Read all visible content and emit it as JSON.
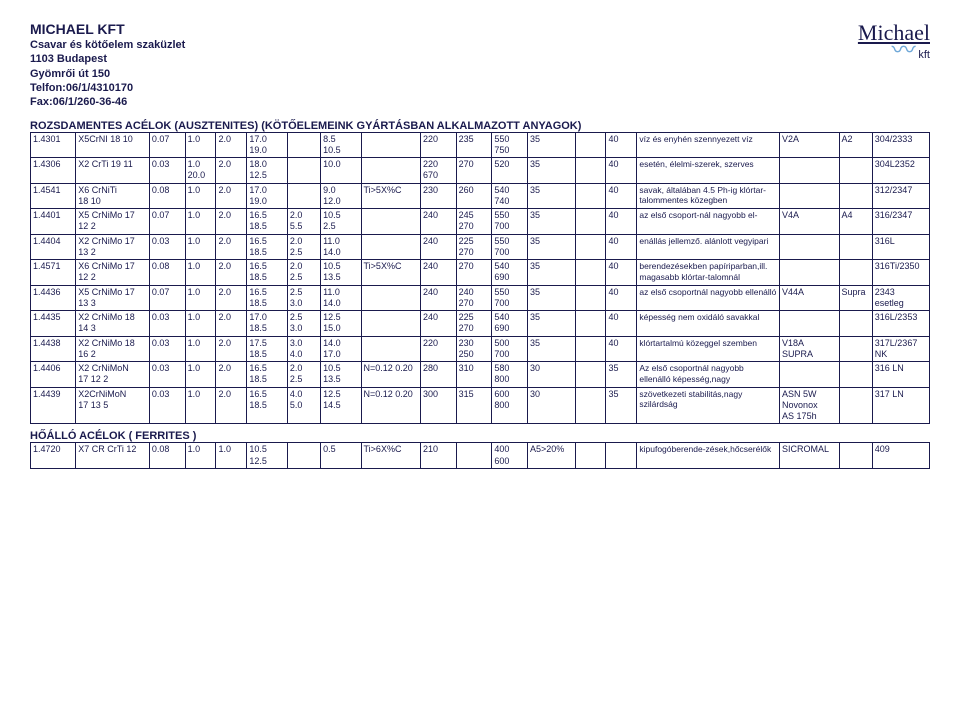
{
  "company": {
    "name": "MICHAEL KFT",
    "subtitle": "Csavar és kötőelem szaküzlet",
    "addr1": "1103 Budapest",
    "addr2": "Gyömrői út 150",
    "tel": "Telfon:06/1/4310170",
    "fax": "Fax:06/1/260-36-46"
  },
  "logo": {
    "script": "Michael",
    "mark": "kft"
  },
  "section1_title": "ROZSDAMENTES ACÉLOK (AUSZTENITES) (KÖTŐELEMEINK GYÁRTÁSBAN ALKALMAZOTT ANYAGOK)",
  "section2_title": "HŐÁLLÓ ACÉLOK ( FERRITES )",
  "rows": [
    {
      "c0": "1.4301",
      "c1": "X5CrNI 18 10",
      "c2": "0.07",
      "c3": "1.0",
      "c4": "2.0",
      "c5": "17.0\n19.0",
      "c6": "",
      "c7": "8.5\n10.5",
      "c8": "",
      "c9": "220",
      "c10": "235",
      "c11": "550\n750",
      "c12": "35",
      "c13": "",
      "c14": "40",
      "n": "víz és enyhén szennyezett víz",
      "c16": "V2A",
      "c17": "A2",
      "c18": "304/2333"
    },
    {
      "c0": "1.4306",
      "c1": "X2 CrTi 19 11",
      "c2": "0.03",
      "c3": "1.0\n20.0",
      "c4": "2.0",
      "c5": "18.0\n12.5",
      "c6": "",
      "c7": "10.0",
      "c8": "",
      "c9": "220\n670",
      "c10": "270",
      "c11": "520",
      "c12": "35",
      "c13": "",
      "c14": "40",
      "n": "esetén, élelmi-szerek, szerves",
      "c16": "",
      "c17": "",
      "c18": "304L2352"
    },
    {
      "c0": "1.4541",
      "c1": "X6 CrNiTi\n18 10",
      "c2": "0.08",
      "c3": "1.0",
      "c4": "2.0",
      "c5": "17.0\n19.0",
      "c6": "",
      "c7": "9.0\n12.0",
      "c8": "Ti>5X%C",
      "c9": "230",
      "c10": "260",
      "c11": "540\n740",
      "c12": "35",
      "c13": "",
      "c14": "40",
      "n": "savak, általában 4.5 Ph-ig klórtar-talommentes közegben",
      "c16": "",
      "c17": "",
      "c18": "312/2347"
    },
    {
      "c0": "1.4401",
      "c1": "X5 CrNiMo 17\n12 2",
      "c2": "0.07",
      "c3": "1.0",
      "c4": "2.0",
      "c5": "16.5\n18.5",
      "c6": "2.0\n5.5",
      "c7": "10.5\n2.5",
      "c8": "",
      "c9": "240",
      "c10": "245\n270",
      "c11": "550\n700",
      "c12": "35",
      "c13": "",
      "c14": "40",
      "n": "az első csoport-nál nagyobb el-",
      "c16": "V4A",
      "c17": "A4",
      "c18": "316/2347"
    },
    {
      "c0": "1.4404",
      "c1": "X2 CrNiMo 17\n13 2",
      "c2": "0.03",
      "c3": "1.0",
      "c4": "2.0",
      "c5": "16.5\n18.5",
      "c6": "2.0\n2.5",
      "c7": "11.0\n14.0",
      "c8": "",
      "c9": "240",
      "c10": "225\n270",
      "c11": "550\n700",
      "c12": "35",
      "c13": "",
      "c14": "40",
      "n": "enállás jellemző. alánlott vegyipari",
      "c16": "",
      "c17": "",
      "c18": "316L"
    },
    {
      "c0": "1.4571",
      "c1": "X6 CrNiMo 17\n12 2",
      "c2": "0.08",
      "c3": "1.0",
      "c4": "2.0",
      "c5": "16.5\n18.5",
      "c6": "2.0\n2.5",
      "c7": "10.5\n13.5",
      "c8": "Ti>5X%C",
      "c9": "240",
      "c10": "270",
      "c11": "540\n690",
      "c12": "35",
      "c13": "",
      "c14": "40",
      "n": "berendezésekben papíriparban,ill. magasabb klórtar-talomnál",
      "c16": "",
      "c17": "",
      "c18": "316Ti/2350"
    },
    {
      "c0": "1.4436",
      "c1": "X5 CrNiMo 17\n13 3",
      "c2": "0.07",
      "c3": "1.0",
      "c4": "2.0",
      "c5": "16.5\n18.5",
      "c6": "2.5\n3.0",
      "c7": "11.0\n14.0",
      "c8": "",
      "c9": "240",
      "c10": "240\n270",
      "c11": "550\n700",
      "c12": "35",
      "c13": "",
      "c14": "40",
      "n": "az első csoportnál nagyobb ellenálló",
      "c16": "V44A",
      "c17": "Supra",
      "c18": "2343\nesetleg"
    },
    {
      "c0": "1.4435",
      "c1": "X2 CrNiMo 18\n14 3",
      "c2": "0.03",
      "c3": "1.0",
      "c4": "2.0",
      "c5": "17.0\n18.5",
      "c6": "2.5\n3.0",
      "c7": "12.5\n15.0",
      "c8": "",
      "c9": "240",
      "c10": "225\n270",
      "c11": "540\n690",
      "c12": "35",
      "c13": "",
      "c14": "40",
      "n": "képesség nem oxidáló savakkal",
      "c16": "",
      "c17": "",
      "c18": "316L/2353"
    },
    {
      "c0": "1.4438",
      "c1": "X2 CrNiMo 18\n16 2",
      "c2": "0.03",
      "c3": "1.0",
      "c4": "2.0",
      "c5": "17.5\n18.5",
      "c6": "3.0\n4.0",
      "c7": "14.0\n17.0",
      "c8": "",
      "c9": "220",
      "c10": "230\n250",
      "c11": "500\n700",
      "c12": "35",
      "c13": "",
      "c14": "40",
      "n": "klórtartalmú közeggel szemben",
      "c16": "V18A\nSUPRA",
      "c17": "",
      "c18": "317L/2367\nNK"
    },
    {
      "c0": "1.4406",
      "c1": "X2 CrNiMoN\n17 12 2",
      "c2": "0.03",
      "c3": "1.0",
      "c4": "2.0",
      "c5": "16.5\n18.5",
      "c6": "2.0\n2.5",
      "c7": "10.5\n13.5",
      "c8": "N=0.12 0.20",
      "c9": "280",
      "c10": "310",
      "c11": "580\n800",
      "c12": "30",
      "c13": "",
      "c14": "35",
      "n": "Az első csoportnál nagyobb ellenálló képesség,nagy",
      "c16": "",
      "c17": "",
      "c18": "316 LN"
    },
    {
      "c0": "1.4439",
      "c1": "X2CrNiMoN\n17 13 5",
      "c2": "0.03",
      "c3": "1.0",
      "c4": "2.0",
      "c5": "16.5\n18.5",
      "c6": "4.0\n5.0",
      "c7": "12.5\n14.5",
      "c8": "N=0.12 0.20",
      "c9": "300",
      "c10": "315",
      "c11": "600\n800",
      "c12": "30",
      "c13": "",
      "c14": "35",
      "n": "szövetkezeti stabilitás,nagy szilárdság",
      "c16": "ASN 5W\nNovonox\nAS 175h",
      "c17": "",
      "c18": "317 LN"
    }
  ],
  "rows2": [
    {
      "c0": "1.4720",
      "c1": "X7 CR CrTi 12",
      "c2": "0.08",
      "c3": "1.0",
      "c4": "1.0",
      "c5": "10.5\n12.5",
      "c6": "",
      "c7": "0.5",
      "c8": "Ti>6X%C",
      "c9": "210",
      "c10": "",
      "c11": "400\n600",
      "c12": "A5>20%",
      "c13": "",
      "c14": "",
      "n": "kipufogóberende-zések,hőcserélők",
      "c16": "SICROMAL",
      "c17": "",
      "c18": "409"
    }
  ],
  "style": {
    "border_color": "#1a1a4d",
    "text_color": "#1a1a4d",
    "bg": "#ffffff",
    "font_size_cell": 9,
    "font_size_title": 11
  }
}
